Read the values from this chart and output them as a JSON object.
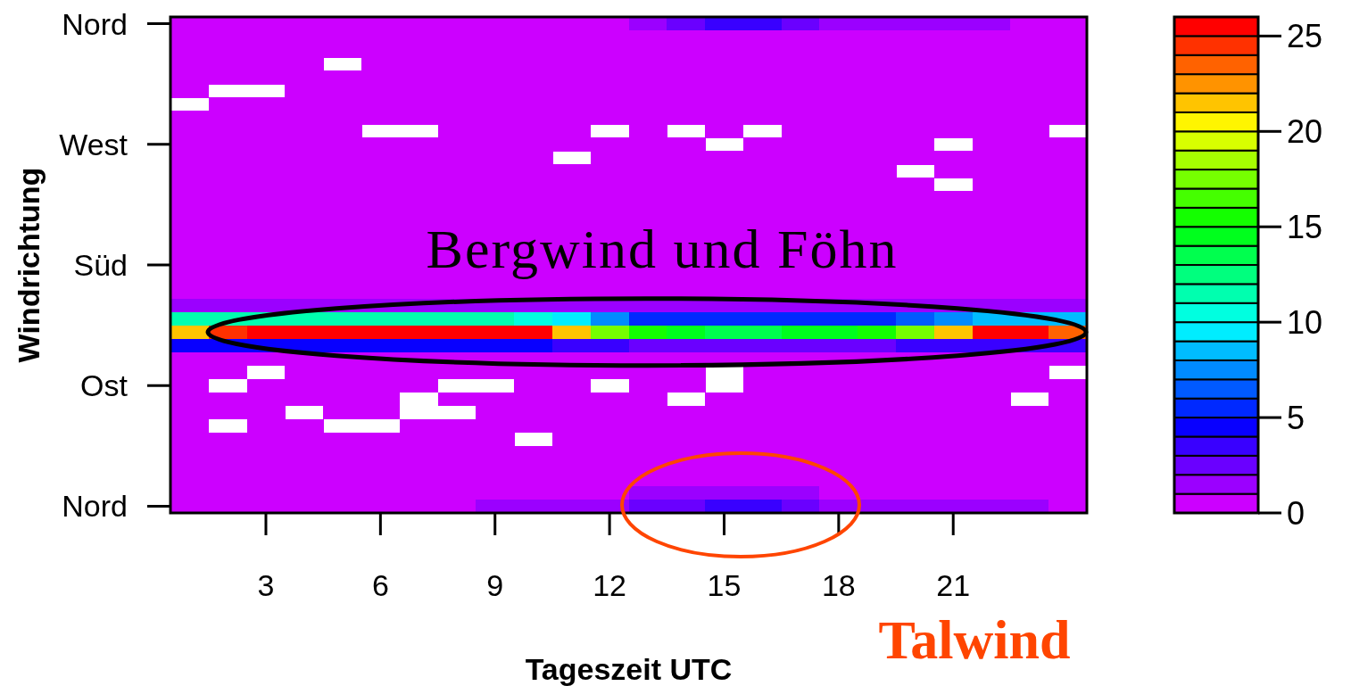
{
  "chart_data": {
    "type": "heatmap",
    "xlabel": "Tageszeit UTC",
    "ylabel": "Windrichtung",
    "categories": [
      null,
      null,
      "3",
      null,
      null,
      "6",
      null,
      null,
      "9",
      null,
      null,
      "12",
      null,
      null,
      "15",
      null,
      null,
      "18",
      null,
      null,
      "21",
      null,
      null,
      null
    ],
    "y_categories": [
      "Nord",
      null,
      null,
      null,
      null,
      null,
      null,
      null,
      null,
      "West",
      null,
      null,
      null,
      null,
      null,
      null,
      null,
      null,
      "Süd",
      null,
      null,
      null,
      null,
      null,
      null,
      null,
      null,
      "Ost",
      null,
      null,
      null,
      null,
      null,
      null,
      null,
      null,
      "Nord"
    ],
    "cells": [
      [
        0.5,
        0.5,
        0.5,
        0.5,
        0.5,
        0.5,
        0.5,
        0.5,
        0.5,
        0.5,
        0.5,
        0.5,
        1.5,
        2.5,
        3.5,
        3.5,
        2.5,
        1.5,
        1.5,
        1.5,
        1.5,
        1.5,
        0.5,
        0.5
      ],
      [
        0.5,
        0.5,
        0.5,
        0.5,
        0.5,
        0.5,
        0.5,
        0.5,
        0.5,
        0.5,
        0.5,
        0.5,
        0.5,
        0.5,
        0.5,
        0.5,
        0.5,
        0.5,
        0.5,
        0.5,
        0.5,
        0.5,
        0.5,
        0.5
      ],
      [
        0.5,
        0.5,
        0.5,
        0.5,
        0.5,
        0.5,
        0.5,
        0.5,
        0.5,
        0.5,
        0.5,
        0.5,
        0.5,
        0.5,
        0.5,
        0.5,
        0.5,
        0.5,
        0.5,
        0.5,
        0.5,
        0.5,
        0.5,
        0.5
      ],
      [
        0.5,
        0.5,
        0.5,
        0.5,
        null,
        0.5,
        0.5,
        0.5,
        0.5,
        0.5,
        0.5,
        0.5,
        0.5,
        0.5,
        0.5,
        0.5,
        0.5,
        0.5,
        0.5,
        0.5,
        0.5,
        0.5,
        0.5,
        0.5
      ],
      [
        0.5,
        0.5,
        0.5,
        0.5,
        0.5,
        0.5,
        0.5,
        0.5,
        0.5,
        0.5,
        0.5,
        0.5,
        0.5,
        0.5,
        0.5,
        0.5,
        0.5,
        0.5,
        0.5,
        0.5,
        0.5,
        0.5,
        0.5,
        0.5
      ],
      [
        0.5,
        null,
        null,
        0.5,
        0.5,
        0.5,
        0.5,
        0.5,
        0.5,
        0.5,
        0.5,
        0.5,
        0.5,
        0.5,
        0.5,
        0.5,
        0.5,
        0.5,
        0.5,
        0.5,
        0.5,
        0.5,
        0.5,
        0.5
      ],
      [
        null,
        0.5,
        0.5,
        0.5,
        0.5,
        0.5,
        0.5,
        0.5,
        0.5,
        0.5,
        0.5,
        0.5,
        0.5,
        0.5,
        0.5,
        0.5,
        0.5,
        0.5,
        0.5,
        0.5,
        0.5,
        0.5,
        0.5,
        0.5
      ],
      [
        0.5,
        0.5,
        0.5,
        0.5,
        0.5,
        0.5,
        0.5,
        0.5,
        0.5,
        0.5,
        0.5,
        0.5,
        0.5,
        0.5,
        0.5,
        0.5,
        0.5,
        0.5,
        0.5,
        0.5,
        0.5,
        0.5,
        0.5,
        0.5
      ],
      [
        0.5,
        0.5,
        0.5,
        0.5,
        0.5,
        null,
        null,
        0.5,
        0.5,
        0.5,
        0.5,
        null,
        0.5,
        null,
        0.5,
        null,
        0.5,
        0.5,
        0.5,
        0.5,
        0.5,
        0.5,
        0.5,
        null
      ],
      [
        0.5,
        0.5,
        0.5,
        0.5,
        0.5,
        0.5,
        0.5,
        0.5,
        0.5,
        0.5,
        0.5,
        0.5,
        0.5,
        0.5,
        null,
        0.5,
        0.5,
        0.5,
        0.5,
        0.5,
        null,
        0.5,
        0.5,
        0.5
      ],
      [
        0.5,
        0.5,
        0.5,
        0.5,
        0.5,
        0.5,
        0.5,
        0.5,
        0.5,
        0.5,
        null,
        0.5,
        0.5,
        0.5,
        0.5,
        0.5,
        0.5,
        0.5,
        0.5,
        0.5,
        0.5,
        0.5,
        0.5,
        0.5
      ],
      [
        0.5,
        0.5,
        0.5,
        0.5,
        0.5,
        0.5,
        0.5,
        0.5,
        0.5,
        0.5,
        0.5,
        0.5,
        0.5,
        0.5,
        0.5,
        0.5,
        0.5,
        0.5,
        0.5,
        null,
        0.5,
        0.5,
        0.5,
        0.5
      ],
      [
        0.5,
        0.5,
        0.5,
        0.5,
        0.5,
        0.5,
        0.5,
        0.5,
        0.5,
        0.5,
        0.5,
        0.5,
        0.5,
        0.5,
        0.5,
        0.5,
        0.5,
        0.5,
        0.5,
        0.5,
        null,
        0.5,
        0.5,
        0.5
      ],
      [
        0.5,
        0.5,
        0.5,
        0.5,
        0.5,
        0.5,
        0.5,
        0.5,
        0.5,
        0.5,
        0.5,
        0.5,
        0.5,
        0.5,
        0.5,
        0.5,
        0.5,
        0.5,
        0.5,
        0.5,
        0.5,
        0.5,
        0.5,
        0.5
      ],
      [
        0.5,
        0.5,
        0.5,
        0.5,
        0.5,
        0.5,
        0.5,
        0.5,
        0.5,
        0.5,
        0.5,
        0.5,
        0.5,
        0.5,
        0.5,
        0.5,
        0.5,
        0.5,
        0.5,
        0.5,
        0.5,
        0.5,
        0.5,
        0.5
      ],
      [
        0.5,
        0.5,
        0.5,
        0.5,
        0.5,
        0.5,
        0.5,
        0.5,
        0.5,
        0.5,
        0.5,
        0.5,
        0.5,
        0.5,
        0.5,
        0.5,
        0.5,
        0.5,
        0.5,
        0.5,
        0.5,
        0.5,
        0.5,
        0.5
      ],
      [
        0.5,
        0.5,
        0.5,
        0.5,
        0.5,
        0.5,
        0.5,
        0.5,
        0.5,
        0.5,
        0.5,
        0.5,
        0.5,
        0.5,
        0.5,
        0.5,
        0.5,
        0.5,
        0.5,
        0.5,
        0.5,
        0.5,
        0.5,
        0.5
      ],
      [
        0.5,
        0.5,
        0.5,
        0.5,
        0.5,
        0.5,
        0.5,
        0.5,
        0.5,
        0.5,
        0.5,
        0.5,
        0.5,
        0.5,
        0.5,
        0.5,
        0.5,
        0.5,
        0.5,
        0.5,
        0.5,
        0.5,
        0.5,
        0.5
      ],
      [
        0.5,
        0.5,
        0.5,
        0.5,
        0.5,
        0.5,
        0.5,
        0.5,
        0.5,
        0.5,
        0.5,
        0.5,
        0.5,
        0.5,
        0.5,
        0.5,
        0.5,
        0.5,
        0.5,
        0.5,
        0.5,
        0.5,
        0.5,
        0.5
      ],
      [
        0.5,
        0.5,
        0.5,
        0.5,
        0.5,
        0.5,
        0.5,
        0.5,
        0.5,
        0.5,
        0.5,
        0.5,
        0.5,
        0.5,
        0.5,
        0.5,
        0.5,
        0.5,
        0.5,
        0.5,
        0.5,
        0.5,
        0.5,
        0.5
      ],
      [
        0.5,
        0.5,
        0.5,
        0.5,
        0.5,
        0.5,
        0.5,
        0.5,
        0.5,
        0.5,
        0.5,
        0.5,
        0.5,
        0.5,
        0.5,
        0.5,
        0.5,
        0.5,
        0.5,
        0.5,
        0.5,
        0.5,
        0.5,
        0.5
      ],
      [
        1.5,
        1.5,
        1.5,
        1.5,
        1.5,
        1.5,
        1.5,
        1.5,
        1.5,
        1.5,
        1.5,
        1.5,
        1.5,
        1.5,
        1.5,
        1.5,
        1.5,
        1.5,
        1.5,
        1.5,
        1.5,
        1.5,
        1.5,
        1.5
      ],
      [
        11.5,
        11.5,
        11.5,
        11.5,
        11.5,
        11.5,
        11.5,
        11.5,
        11.5,
        10.5,
        9.5,
        7.5,
        5.5,
        5.5,
        5.5,
        5.5,
        5.5,
        5.5,
        5.5,
        6.5,
        7.5,
        8.5,
        8.5,
        8.5
      ],
      [
        21.5,
        24.5,
        25.5,
        25.5,
        25.5,
        25.5,
        25.5,
        25.5,
        25.5,
        25.5,
        21.5,
        17.5,
        15.5,
        14.5,
        13.5,
        13.5,
        14.5,
        14.5,
        15.5,
        17.5,
        21.5,
        25.5,
        25.5,
        23.5
      ],
      [
        4.5,
        4.5,
        4.5,
        4.5,
        4.5,
        4.5,
        4.5,
        4.5,
        4.5,
        4.5,
        3.5,
        3.5,
        2.5,
        2.5,
        2.5,
        2.5,
        2.5,
        2.5,
        2.5,
        3.5,
        3.5,
        3.5,
        3.5,
        3.5
      ],
      [
        0.5,
        0.5,
        0.5,
        0.5,
        0.5,
        0.5,
        0.5,
        0.5,
        0.5,
        0.5,
        0.5,
        0.5,
        0.5,
        0.5,
        0.5,
        0.5,
        0.5,
        0.5,
        0.5,
        0.5,
        0.5,
        0.5,
        0.5,
        0.5
      ],
      [
        0.5,
        0.5,
        null,
        0.5,
        0.5,
        0.5,
        0.5,
        0.5,
        0.5,
        0.5,
        0.5,
        0.5,
        0.5,
        0.5,
        null,
        0.5,
        0.5,
        0.5,
        0.5,
        0.5,
        0.5,
        0.5,
        0.5,
        null
      ],
      [
        0.5,
        null,
        0.5,
        0.5,
        0.5,
        0.5,
        0.5,
        null,
        null,
        0.5,
        0.5,
        null,
        0.5,
        0.5,
        null,
        0.5,
        0.5,
        0.5,
        0.5,
        0.5,
        0.5,
        0.5,
        0.5,
        0.5
      ],
      [
        0.5,
        0.5,
        0.5,
        0.5,
        0.5,
        0.5,
        null,
        0.5,
        0.5,
        0.5,
        0.5,
        0.5,
        0.5,
        null,
        0.5,
        0.5,
        0.5,
        0.5,
        0.5,
        0.5,
        0.5,
        0.5,
        null,
        0.5
      ],
      [
        0.5,
        0.5,
        0.5,
        null,
        0.5,
        0.5,
        null,
        null,
        0.5,
        0.5,
        0.5,
        0.5,
        0.5,
        0.5,
        0.5,
        0.5,
        0.5,
        0.5,
        0.5,
        0.5,
        0.5,
        0.5,
        0.5,
        0.5
      ],
      [
        0.5,
        null,
        0.5,
        0.5,
        null,
        null,
        0.5,
        0.5,
        0.5,
        0.5,
        0.5,
        0.5,
        0.5,
        0.5,
        0.5,
        0.5,
        0.5,
        0.5,
        0.5,
        0.5,
        0.5,
        0.5,
        0.5,
        0.5
      ],
      [
        0.5,
        0.5,
        0.5,
        0.5,
        0.5,
        0.5,
        0.5,
        0.5,
        0.5,
        null,
        0.5,
        0.5,
        0.5,
        0.5,
        0.5,
        0.5,
        0.5,
        0.5,
        0.5,
        0.5,
        0.5,
        0.5,
        0.5,
        0.5
      ],
      [
        0.5,
        0.5,
        0.5,
        0.5,
        0.5,
        0.5,
        0.5,
        0.5,
        0.5,
        0.5,
        0.5,
        0.5,
        0.5,
        0.5,
        0.5,
        0.5,
        0.5,
        0.5,
        0.5,
        0.5,
        0.5,
        0.5,
        0.5,
        0.5
      ],
      [
        0.5,
        0.5,
        0.5,
        0.5,
        0.5,
        0.5,
        0.5,
        0.5,
        0.5,
        0.5,
        0.5,
        0.5,
        0.5,
        0.5,
        0.5,
        0.5,
        0.5,
        0.5,
        0.5,
        0.5,
        0.5,
        0.5,
        0.5,
        0.5
      ],
      [
        0.5,
        0.5,
        0.5,
        0.5,
        0.5,
        0.5,
        0.5,
        0.5,
        0.5,
        0.5,
        0.5,
        0.5,
        0.5,
        0.5,
        0.5,
        0.5,
        0.5,
        0.5,
        0.5,
        0.5,
        0.5,
        0.5,
        0.5,
        0.5
      ],
      [
        0.5,
        0.5,
        0.5,
        0.5,
        0.5,
        0.5,
        0.5,
        0.5,
        0.5,
        0.5,
        0.5,
        0.5,
        1.5,
        1.5,
        1.5,
        1.5,
        1.5,
        0.5,
        0.5,
        0.5,
        0.5,
        0.5,
        0.5,
        0.5
      ],
      [
        0.5,
        0.5,
        0.5,
        0.5,
        0.5,
        0.5,
        0.5,
        0.5,
        1.5,
        1.5,
        1.5,
        1.5,
        2.5,
        2.5,
        3.5,
        3.5,
        2.5,
        1.5,
        1.5,
        1.5,
        1.5,
        1.5,
        1.5,
        0.5
      ]
    ],
    "clim": [
      0,
      26
    ],
    "cticks": [
      0,
      5,
      10,
      15,
      20,
      25
    ],
    "colors": [
      "#cc00ff",
      "#9b00ff",
      "#6a00ff",
      "#3900ff",
      "#0800ff",
      "#0029ff",
      "#005aff",
      "#008bff",
      "#00bcff",
      "#00edff",
      "#00ffe0",
      "#00ffaf",
      "#00ff7e",
      "#00ff4e",
      "#00ff1d",
      "#14ff00",
      "#45ff00",
      "#76ff00",
      "#a7ff00",
      "#d8ff00",
      "#fff500",
      "#ffc400",
      "#ff9300",
      "#ff6200",
      "#ff3100",
      "#ff0000"
    ],
    "annotations": [
      "Bergwind und Föhn",
      "Talwind"
    ]
  }
}
